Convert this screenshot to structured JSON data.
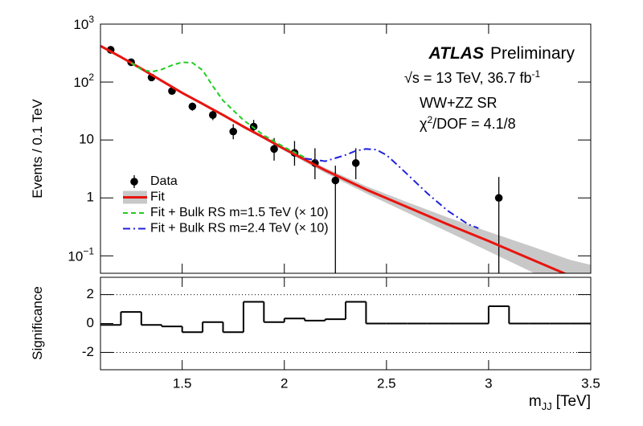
{
  "chart_data": [
    {
      "type": "line",
      "log_y": true,
      "y_label": "Events / 0.1 TeV",
      "xlim": [
        1.1,
        3.5
      ],
      "ylim": [
        0.05,
        1000
      ],
      "xticks": [
        1.5,
        2,
        2.5,
        3,
        3.5
      ],
      "yticks": [
        {
          "value": 0.1,
          "label": "10",
          "superscript": "−1"
        },
        1,
        10,
        {
          "value": 100,
          "label": "10",
          "superscript": "2"
        },
        {
          "value": 1000,
          "label": "10",
          "superscript": "3"
        }
      ],
      "legend": "left",
      "annotations": {
        "experiment": "ATLAS",
        "status": "Preliminary",
        "energy": "√s = 13 TeV, 36.7 fb",
        "energy_sup": "-1",
        "region": "WW+ZZ SR",
        "chi_symbol": "χ",
        "chi_sup": "2",
        "chi_text": "/DOF = 4.1/8"
      },
      "series": [
        {
          "name": "Data",
          "style": "points",
          "color": "#000000",
          "x": [
            1.15,
            1.25,
            1.35,
            1.45,
            1.55,
            1.65,
            1.75,
            1.85,
            1.95,
            2.05,
            2.15,
            2.25,
            2.35,
            3.05
          ],
          "values": [
            360,
            220,
            120,
            70,
            38,
            27,
            14,
            17,
            7,
            6,
            4,
            2,
            4,
            1
          ],
          "error_low": [
            19,
            15,
            11,
            8,
            6,
            5,
            3.7,
            4,
            2.6,
            2.4,
            1.9,
            2,
            1.9,
            1
          ],
          "error_high": [
            19,
            15,
            11,
            8,
            6,
            5,
            4.8,
            5.2,
            3.8,
            3.6,
            3.2,
            1.6,
            3.2,
            1.3
          ]
        },
        {
          "name": "Fit",
          "style": "line",
          "color": "#e8140f",
          "band_color": "#c8c8c8",
          "x": [
            1.1,
            1.2,
            1.3,
            1.4,
            1.5,
            1.6,
            1.7,
            1.8,
            1.9,
            2.0,
            2.2,
            2.4,
            2.6,
            2.8,
            3.0,
            3.2,
            3.4,
            3.5
          ],
          "values": [
            420,
            270,
            170,
            105,
            65,
            42,
            27,
            17,
            11,
            7,
            3,
            1.4,
            0.7,
            0.35,
            0.18,
            0.09,
            0.045,
            0.032
          ],
          "band_low": [
            400,
            260,
            164,
            101,
            62.5,
            40,
            25.5,
            16,
            10.3,
            6.5,
            2.7,
            1.2,
            0.56,
            0.26,
            0.12,
            0.055,
            0.025,
            0.017
          ],
          "band_high": [
            440,
            281,
            177,
            109,
            68,
            44,
            28.5,
            18,
            11.7,
            7.5,
            3.3,
            1.6,
            0.85,
            0.46,
            0.26,
            0.15,
            0.085,
            0.07
          ]
        },
        {
          "name": "Fit + Bulk RS m=1.5 TeV (× 10)",
          "style": "dashed",
          "color": "#22cc22",
          "x": [
            1.25,
            1.3,
            1.35,
            1.4,
            1.45,
            1.5,
            1.55,
            1.6,
            1.65,
            1.7,
            1.8,
            1.9,
            2.0,
            2.1
          ],
          "values": [
            215,
            165,
            150,
            165,
            195,
            220,
            215,
            160,
            85,
            48,
            22,
            12,
            7.5,
            5
          ]
        },
        {
          "name": "Fit + Bulk RS m=2.4 TeV (× 10)",
          "style": "dashdot",
          "color": "#2222dd",
          "x": [
            2.1,
            2.2,
            2.3,
            2.35,
            2.4,
            2.45,
            2.5,
            2.55,
            2.6,
            2.7,
            2.8,
            2.9,
            2.95
          ],
          "values": [
            4.8,
            4.3,
            5.5,
            6.5,
            7,
            6.8,
            5.5,
            3.8,
            2.6,
            1.2,
            0.6,
            0.35,
            0.3
          ]
        }
      ]
    },
    {
      "type": "histogram",
      "y_label": "Significance",
      "x_label": "m",
      "x_label_sub": "JJ",
      "x_label_unit": "[TeV]",
      "xlim": [
        1.1,
        3.5
      ],
      "ylim": [
        -3.2,
        3.2
      ],
      "xticks": [
        1.5,
        2,
        2.5,
        3,
        3.5
      ],
      "yticks": [
        -2,
        0,
        2
      ],
      "dotted_lines": [
        -2,
        2
      ],
      "color": "#000000",
      "bins": [
        1.1,
        1.2,
        1.3,
        1.4,
        1.5,
        1.6,
        1.7,
        1.8,
        1.9,
        2.0,
        2.1,
        2.2,
        2.3,
        2.4,
        2.5,
        2.6,
        2.7,
        2.8,
        2.9,
        3.0,
        3.1,
        3.2,
        3.3,
        3.4,
        3.5
      ],
      "values": [
        -0.1,
        0.8,
        -0.1,
        -0.2,
        -0.6,
        0.1,
        -0.6,
        1.5,
        0.1,
        0.35,
        0.2,
        0.3,
        1.5,
        0,
        0,
        0,
        0,
        0,
        0,
        1.2,
        0,
        0,
        0,
        0
      ]
    }
  ]
}
